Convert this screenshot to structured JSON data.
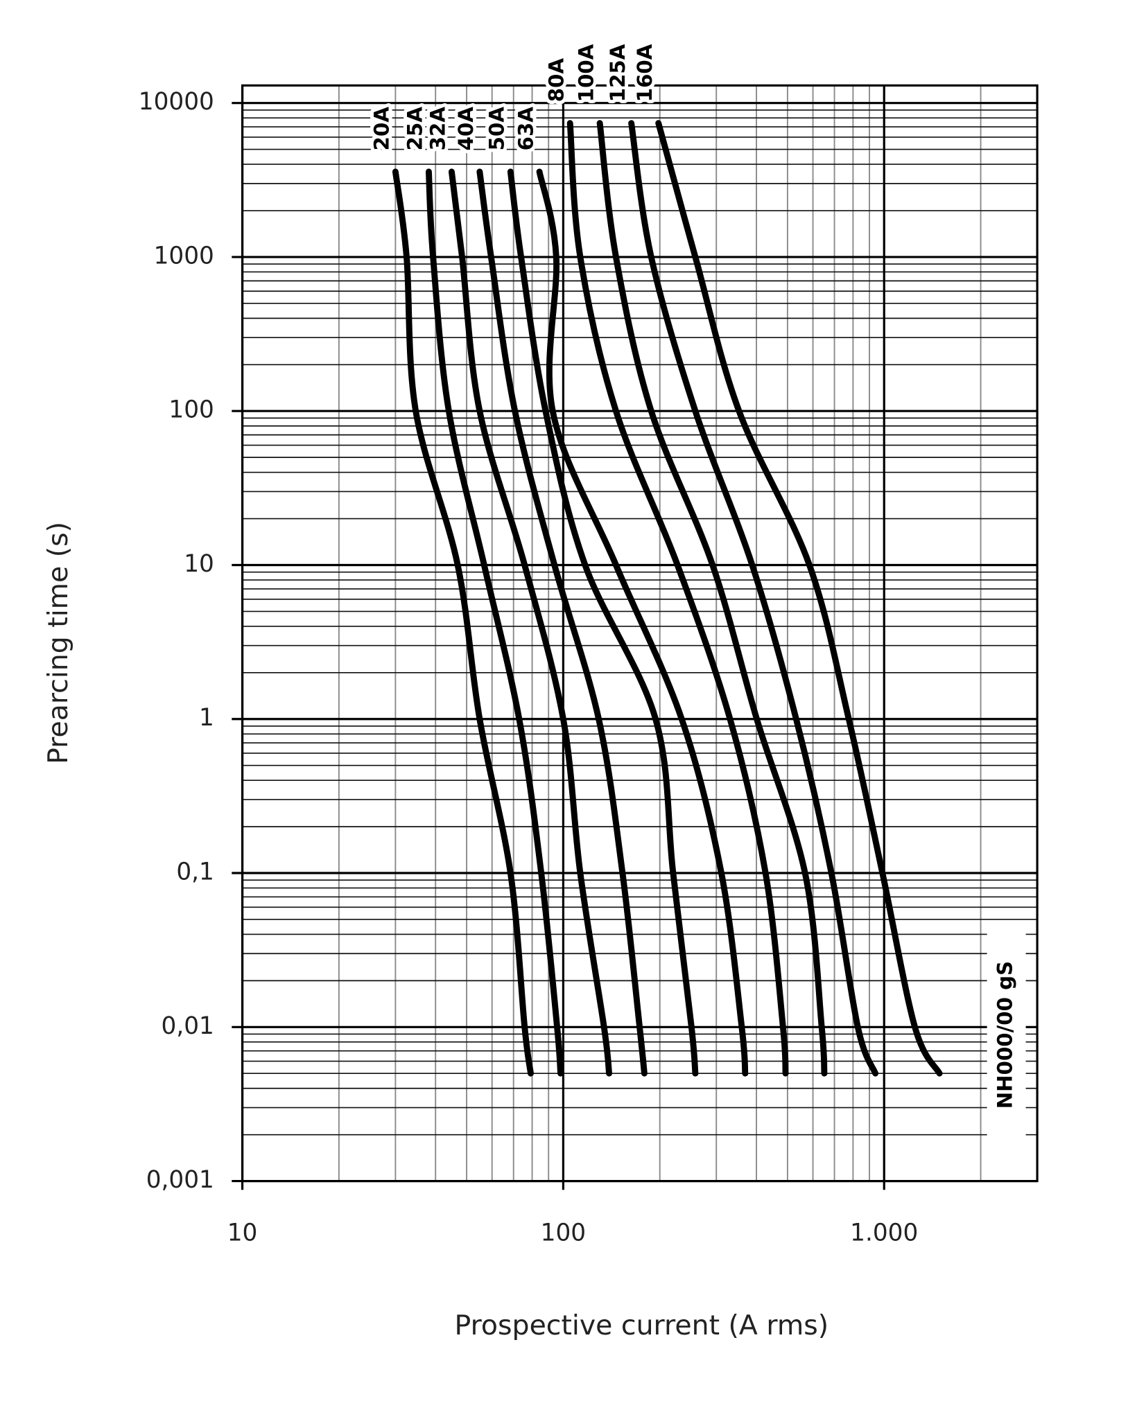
{
  "chart_data": {
    "type": "line",
    "x_label": "Prospective current (A rms)",
    "y_label": "Prearcing time (s)",
    "annotation": "NH000/00 gS",
    "xscale": "log",
    "yscale": "log",
    "grid": true,
    "minor_grid": true,
    "xlim": [
      10,
      3000
    ],
    "ylim": [
      0.001,
      13000
    ],
    "xticks": [
      10,
      100,
      {
        "value": 1000,
        "label": "1.000"
      }
    ],
    "yticks": [
      10000,
      1000,
      100,
      10,
      1,
      {
        "value": 0.1,
        "label": "0,1"
      },
      {
        "value": 0.01,
        "label": "0,01"
      },
      {
        "value": 0.001,
        "label": "0,001"
      }
    ],
    "series": [
      {
        "name": "20A",
        "color": "#000000",
        "x": [
          30,
          32.5,
          34.7,
          46.9,
          54.9,
          68.5,
          75.8,
          79.2
        ],
        "values": [
          3580,
          1000,
          100,
          10,
          1,
          0.1,
          0.01,
          0.005
        ]
      },
      {
        "name": "25A",
        "color": "#000000",
        "x": [
          38.1,
          39.3,
          44.0,
          56.7,
          72.9,
          85.4,
          95.7,
          98.1
        ],
        "values": [
          3580,
          1000,
          100,
          10,
          1,
          0.1,
          0.01,
          0.005
        ]
      },
      {
        "name": "32A",
        "color": "#000000",
        "x": [
          44.9,
          48.4,
          54.9,
          75.8,
          100,
          113,
          134,
          139
        ],
        "values": [
          3580,
          1000,
          100,
          10,
          1,
          0.1,
          0.01,
          0.005
        ]
      },
      {
        "name": "40A",
        "color": "#000000",
        "x": [
          54.9,
          59.6,
          70.7,
          93.9,
          129,
          153,
          173,
          179
        ],
        "values": [
          3580,
          1000,
          100,
          10,
          1,
          0.1,
          0.01,
          0.005
        ]
      },
      {
        "name": "50A",
        "color": "#000000",
        "x": [
          68.5,
          73.9,
          88.1,
          117,
          194,
          220,
          251,
          258
        ],
        "values": [
          3580,
          1000,
          100,
          10,
          1,
          0.1,
          0.01,
          0.005
        ]
      },
      {
        "name": "63A",
        "color": "#000000",
        "x": [
          84.3,
          95.1,
          92.7,
          146,
          234,
          311,
          360,
          369
        ],
        "values": [
          3580,
          1000,
          100,
          10,
          1,
          0.1,
          0.01,
          0.005
        ]
      },
      {
        "name": "80A",
        "color": "#000000",
        "x": [
          105,
          113,
          146,
          227,
          331,
          427,
          484,
          493
        ],
        "values": [
          7400,
          1000,
          100,
          10,
          1,
          0.1,
          0.01,
          0.005
        ]
      },
      {
        "name": "100A",
        "color": "#000000",
        "x": [
          130,
          146,
          188,
          292,
          401,
          567,
          639,
          651
        ],
        "values": [
          7400,
          1000,
          100,
          10,
          1,
          0.1,
          0.01,
          0.005
        ]
      },
      {
        "name": "125A",
        "color": "#000000",
        "x": [
          163,
          188,
          258,
          388,
          532,
          685,
          828,
          939
        ],
        "values": [
          7400,
          1000,
          100,
          10,
          1,
          0.1,
          0.01,
          0.005
        ]
      },
      {
        "name": "160A",
        "color": "#000000",
        "x": [
          198,
          258,
          353,
          585,
          776,
          988,
          1247,
          1488
        ],
        "values": [
          7400,
          1000,
          100,
          10,
          1,
          0.1,
          0.01,
          0.005
        ]
      }
    ]
  }
}
